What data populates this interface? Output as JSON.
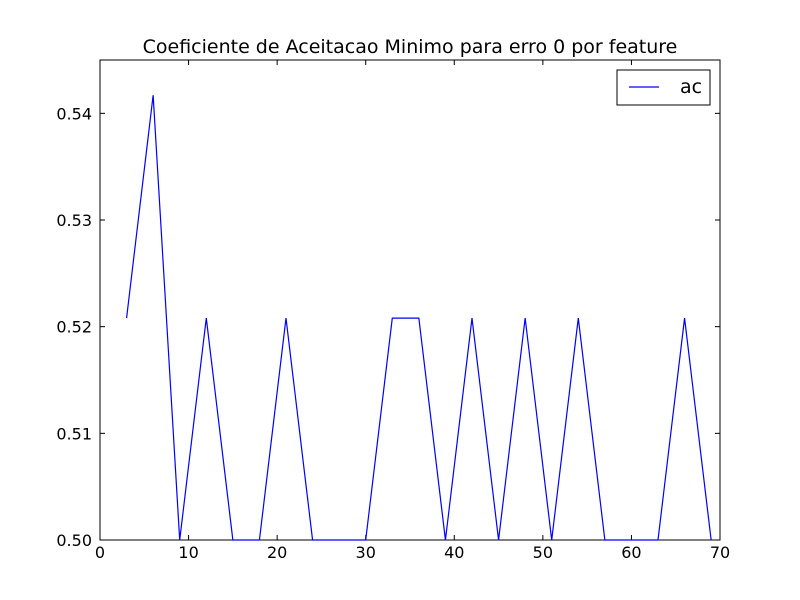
{
  "chart_data": {
    "type": "line",
    "title": "Coeficiente de Aceitacao Minimo para erro 0 por feature",
    "xlabel": "",
    "ylabel": "",
    "xlim": [
      0,
      70
    ],
    "ylim": [
      0.5,
      0.545
    ],
    "xticks": [
      0,
      10,
      20,
      30,
      40,
      50,
      60,
      70
    ],
    "xtick_labels": [
      "0",
      "10",
      "20",
      "30",
      "40",
      "50",
      "60",
      "70"
    ],
    "yticks": [
      0.5,
      0.51,
      0.52,
      0.53,
      0.54
    ],
    "ytick_labels": [
      "0.50",
      "0.51",
      "0.52",
      "0.53",
      "0.54"
    ],
    "grid": false,
    "legend_position": "top-right",
    "series": [
      {
        "name": "ac",
        "color": "#0000ff",
        "x": [
          3,
          6,
          9,
          12,
          15,
          18,
          21,
          24,
          27,
          30,
          33,
          36,
          39,
          42,
          45,
          48,
          51,
          54,
          57,
          60,
          63,
          66,
          69
        ],
        "y": [
          0.5208,
          0.5417,
          0.5,
          0.5208,
          0.5,
          0.5,
          0.5208,
          0.5,
          0.5,
          0.5,
          0.5208,
          0.5208,
          0.5,
          0.5208,
          0.5,
          0.5208,
          0.5,
          0.5208,
          0.5,
          0.5,
          0.5,
          0.5208,
          0.5
        ]
      }
    ]
  }
}
